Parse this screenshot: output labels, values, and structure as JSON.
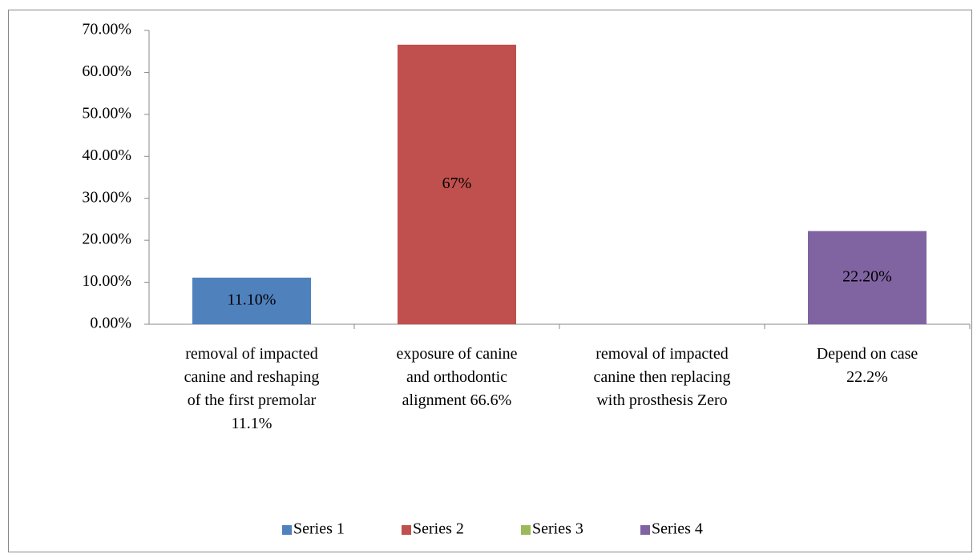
{
  "chart_data": {
    "type": "bar",
    "categories": [
      "removal of impacted\ncanine and reshaping\nof  the first premolar\n11.1%",
      "exposure of canine\nand orthodontic\nalignment 66.6%",
      "removal of impacted\ncanine then replacing\nwith prosthesis Zero",
      "Depend on case\n22.2%"
    ],
    "series": [
      {
        "name": "Series 1",
        "color": "#4f81bd",
        "values": [
          11.1,
          null,
          null,
          null
        ],
        "value_labels": [
          "11.10%",
          null,
          null,
          null
        ]
      },
      {
        "name": "Series 2",
        "color": "#c0504d",
        "values": [
          null,
          66.6,
          null,
          null
        ],
        "value_labels": [
          null,
          "67%",
          null,
          null
        ]
      },
      {
        "name": "Series 3",
        "color": "#9bbb59",
        "values": [
          null,
          null,
          0,
          null
        ]
      },
      {
        "name": "Series 4",
        "color": "#8064a2",
        "values": [
          null,
          null,
          null,
          22.2
        ],
        "value_labels": [
          null,
          null,
          null,
          "22.20%"
        ]
      }
    ],
    "ylim": [
      0,
      70
    ],
    "yticks": [
      {
        "value": 0,
        "label": "0.00%"
      },
      {
        "value": 10,
        "label": "10.00%"
      },
      {
        "value": 20,
        "label": "20.00%"
      },
      {
        "value": 30,
        "label": "30.00%"
      },
      {
        "value": 40,
        "label": "40.00%"
      },
      {
        "value": 50,
        "label": "50.00%"
      },
      {
        "value": 60,
        "label": "60.00%"
      },
      {
        "value": 70,
        "label": "70.00%"
      }
    ],
    "legend": "bottom"
  }
}
